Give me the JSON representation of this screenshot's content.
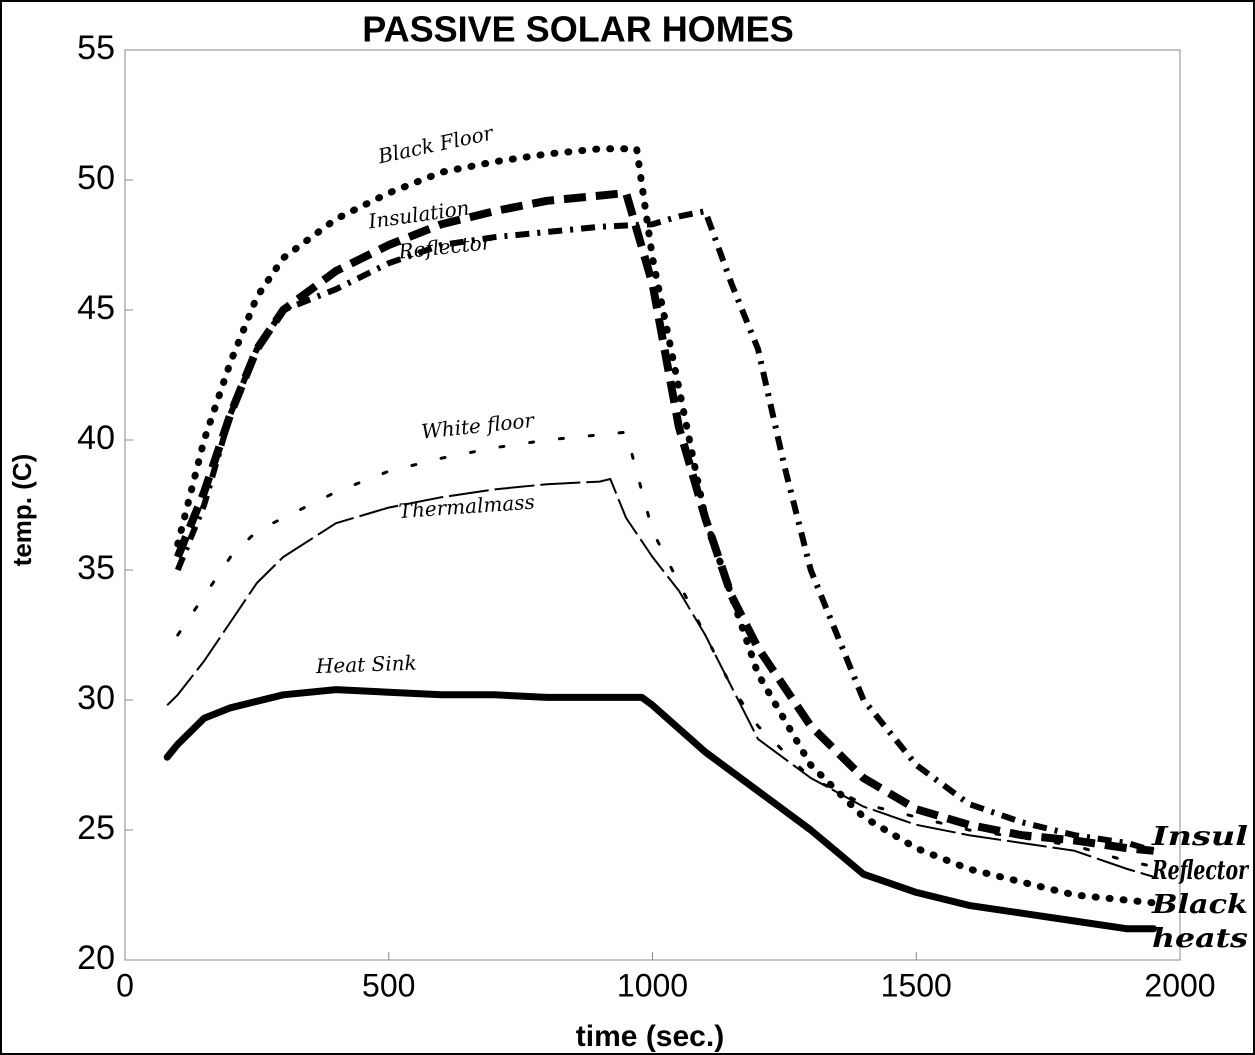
{
  "chart_data": {
    "type": "line",
    "title": "PASSIVE SOLAR HOMES",
    "xlabel": "time (sec.)",
    "ylabel": "temp. (C)",
    "xlim": [
      0,
      2000
    ],
    "xticks": [
      0,
      500,
      1000,
      1500,
      2000
    ],
    "ylim": [
      20,
      55
    ],
    "yticks": [
      20,
      25,
      30,
      35,
      40,
      45,
      50,
      55
    ],
    "series": [
      {
        "name": "Black Floor",
        "color": "#000000",
        "x": [
          100,
          150,
          200,
          250,
          300,
          400,
          500,
          600,
          700,
          800,
          900,
          970,
          1000,
          1050,
          1100,
          1150,
          1200,
          1300,
          1400,
          1500,
          1600,
          1700,
          1800,
          1900,
          1950
        ],
        "values": [
          36,
          40,
          43,
          45.5,
          47,
          48.5,
          49.5,
          50.3,
          50.7,
          51,
          51.2,
          51.2,
          47,
          42,
          37,
          34,
          31,
          27.5,
          25.5,
          24.3,
          23.5,
          23,
          22.5,
          22.3,
          22.2
        ]
      },
      {
        "name": "Insulation",
        "color": "#000000",
        "x": [
          100,
          150,
          200,
          250,
          300,
          400,
          500,
          600,
          700,
          800,
          900,
          950,
          1000,
          1050,
          1100,
          1150,
          1200,
          1300,
          1400,
          1500,
          1600,
          1700,
          1800,
          1900,
          1950
        ],
        "values": [
          35.5,
          38,
          41,
          43.5,
          45,
          46.5,
          47.5,
          48.3,
          48.8,
          49.2,
          49.4,
          49.5,
          46,
          40.5,
          37,
          34,
          32,
          29,
          27,
          25.8,
          25.2,
          24.8,
          24.6,
          24.3,
          24.2
        ]
      },
      {
        "name": "Reflector",
        "color": "#000000",
        "x": [
          100,
          150,
          200,
          250,
          300,
          400,
          500,
          600,
          700,
          800,
          900,
          1000,
          1050,
          1100,
          1150,
          1200,
          1250,
          1300,
          1400,
          1500,
          1600,
          1700,
          1800,
          1900,
          1950
        ],
        "values": [
          35,
          37.5,
          41,
          43.5,
          45,
          45.8,
          46.8,
          47.5,
          47.8,
          48,
          48.2,
          48.3,
          48.6,
          48.8,
          46,
          43.5,
          39,
          35,
          30,
          27.5,
          26,
          25.3,
          24.8,
          24.5,
          24.2
        ]
      },
      {
        "name": "White floor",
        "color": "#000000",
        "x": [
          100,
          150,
          200,
          250,
          300,
          400,
          500,
          600,
          700,
          800,
          900,
          950,
          1000,
          1050,
          1100,
          1150,
          1200,
          1300,
          1400,
          1500,
          1600,
          1700,
          1800,
          1900,
          1950
        ],
        "values": [
          32.5,
          34,
          35.5,
          36.5,
          37,
          38,
          38.8,
          39.3,
          39.7,
          40,
          40.2,
          40.3,
          36.5,
          34.5,
          32.5,
          30.5,
          29,
          27,
          26,
          25.5,
          25,
          24.7,
          24.4,
          23.8,
          23.6
        ]
      },
      {
        "name": "Thermalmass",
        "color": "#000000",
        "x": [
          80,
          100,
          150,
          200,
          250,
          300,
          400,
          500,
          600,
          700,
          800,
          900,
          920,
          950,
          1000,
          1050,
          1100,
          1150,
          1200,
          1300,
          1400,
          1500,
          1600,
          1700,
          1800,
          1900,
          1950
        ],
        "values": [
          29.8,
          30.2,
          31.5,
          33,
          34.5,
          35.5,
          36.8,
          37.4,
          37.8,
          38.1,
          38.3,
          38.4,
          38.5,
          37,
          35.5,
          34.2,
          32.5,
          30.5,
          28.5,
          27,
          25.9,
          25.2,
          24.8,
          24.5,
          24.2,
          23.5,
          23.2
        ]
      },
      {
        "name": "Heat Sink",
        "color": "#000000",
        "x": [
          80,
          100,
          150,
          200,
          300,
          400,
          500,
          600,
          700,
          800,
          900,
          980,
          1000,
          1100,
          1200,
          1300,
          1400,
          1500,
          1600,
          1700,
          1800,
          1900,
          1950
        ],
        "values": [
          27.8,
          28.3,
          29.3,
          29.7,
          30.2,
          30.4,
          30.3,
          30.2,
          30.2,
          30.1,
          30.1,
          30.1,
          29.8,
          28,
          26.5,
          25,
          23.3,
          22.6,
          22.1,
          21.8,
          21.5,
          21.2,
          21.2
        ]
      }
    ],
    "annotations": [
      "Insul",
      "Reflector",
      "Black",
      "heats"
    ]
  }
}
